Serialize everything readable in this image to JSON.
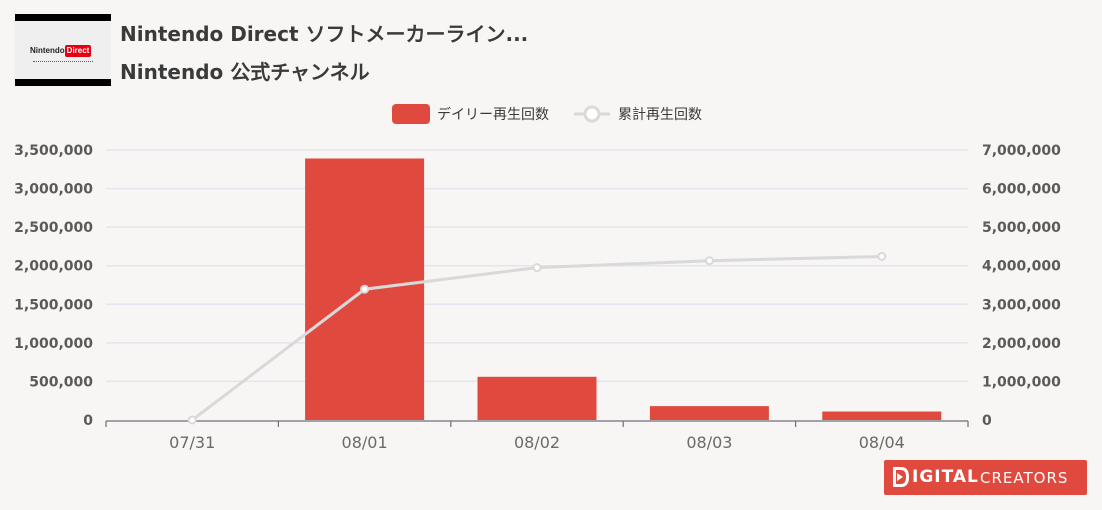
{
  "header": {
    "thumbnail": {
      "logo_word": "Nintendo",
      "logo_badge": "Direct"
    },
    "title": "Nintendo Direct ソフトメーカーライン...",
    "channel": "Nintendo 公式チャンネル"
  },
  "brand": {
    "bold": "IGITAL",
    "light": "CREATORS"
  },
  "colors": {
    "bar": "#e04a3e",
    "line": "#d9d9d9",
    "grid": "#e3e6ee",
    "background": "#f7f6f4"
  },
  "chart_data": {
    "type": "bar",
    "categories": [
      "07/31",
      "08/01",
      "08/02",
      "08/03",
      "08/04"
    ],
    "series": [
      {
        "name": "デイリー再生回数",
        "type": "bar",
        "axis": "left",
        "values": [
          0,
          3390000,
          560000,
          180000,
          110000
        ]
      },
      {
        "name": "累計再生回数",
        "type": "line",
        "axis": "right",
        "values": [
          0,
          3390000,
          3950000,
          4130000,
          4240000
        ]
      }
    ],
    "y_left": {
      "min": 0,
      "max": 3500000,
      "ticks": [
        "0",
        "500,000",
        "1,000,000",
        "1,500,000",
        "2,000,000",
        "2,500,000",
        "3,000,000",
        "3,500,000"
      ]
    },
    "y_right": {
      "min": 0,
      "max": 7000000,
      "ticks": [
        "0",
        "1,000,000",
        "2,000,000",
        "3,000,000",
        "4,000,000",
        "5,000,000",
        "6,000,000",
        "7,000,000"
      ]
    },
    "grid": true,
    "legend_position": "top-center"
  }
}
